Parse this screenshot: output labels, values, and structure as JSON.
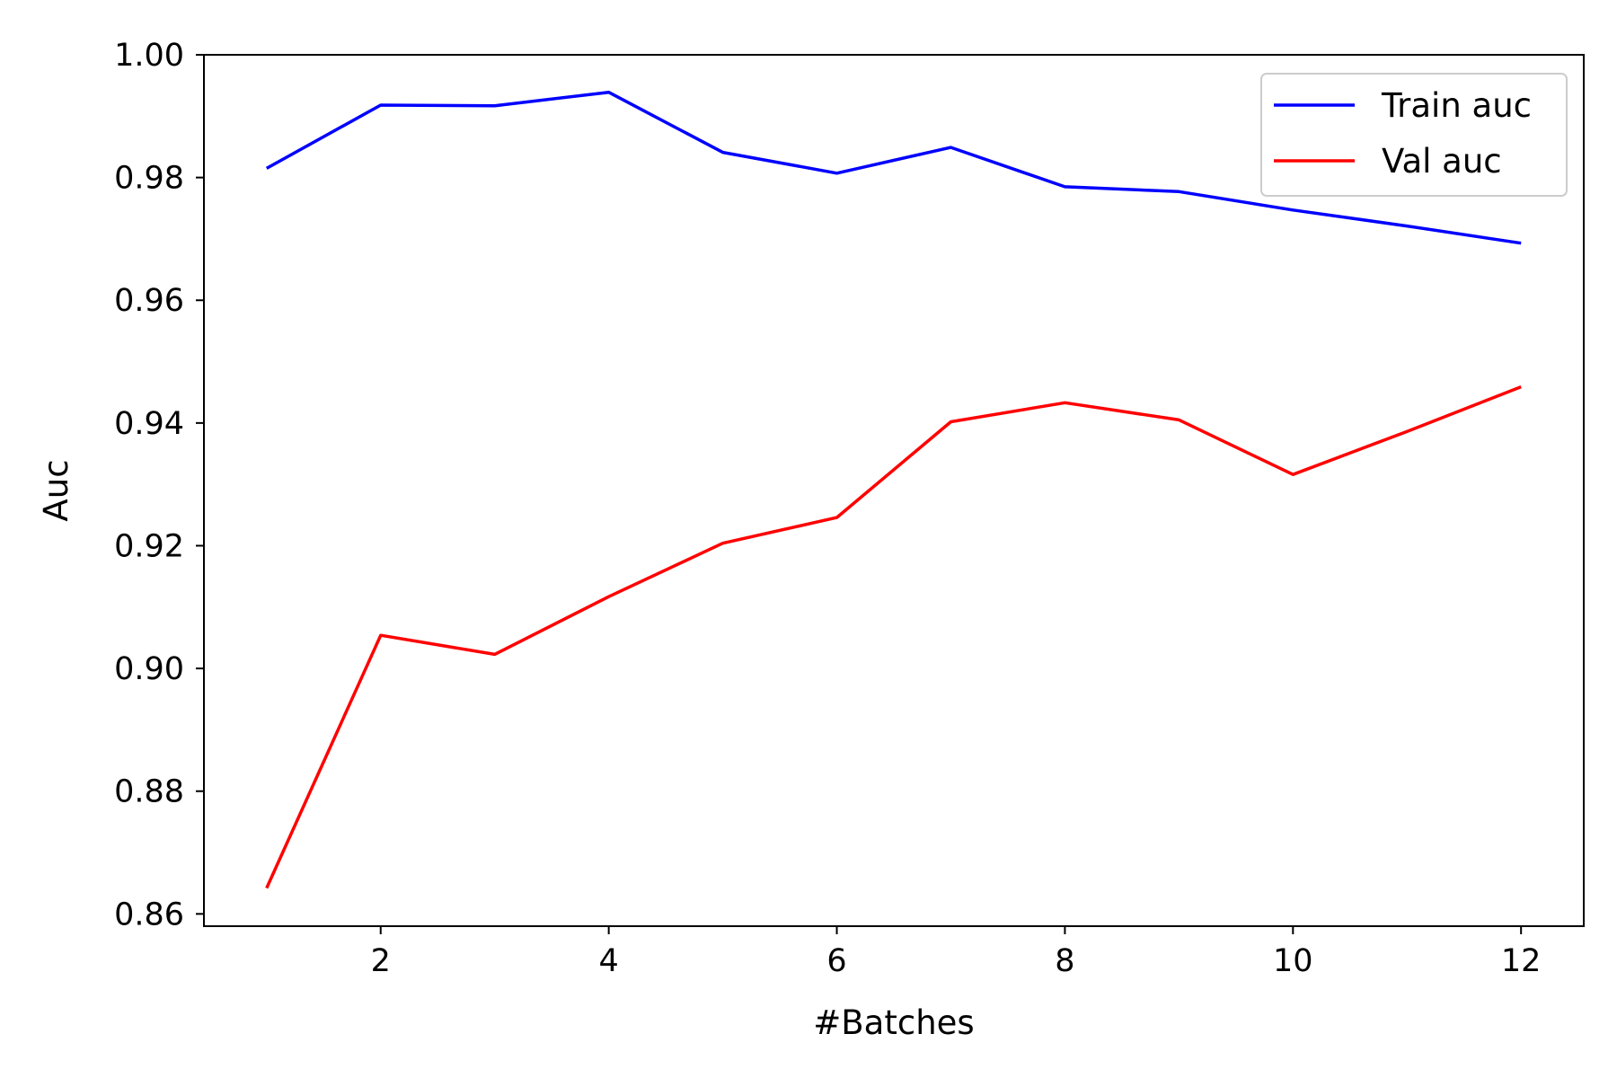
{
  "chart_data": {
    "type": "line",
    "title": "",
    "xlabel": "#Batches",
    "ylabel": "Auc",
    "x": [
      1,
      2,
      3,
      4,
      5,
      6,
      7,
      8,
      9,
      10,
      11,
      12
    ],
    "xlim": [
      0.45,
      12.55
    ],
    "ylim": [
      0.858,
      1.0
    ],
    "xticks": [
      2,
      4,
      6,
      8,
      10,
      12
    ],
    "xtick_labels": [
      "2",
      "4",
      "6",
      "8",
      "10",
      "12"
    ],
    "yticks": [
      0.86,
      0.88,
      0.9,
      0.92,
      0.94,
      0.96,
      0.98,
      1.0
    ],
    "ytick_labels": [
      "0.86",
      "0.88",
      "0.90",
      "0.92",
      "0.94",
      "0.96",
      "0.98",
      "1.00"
    ],
    "grid": false,
    "legend_position": "top-right",
    "series": [
      {
        "name": "Train auc",
        "color": "#0000ff",
        "values": [
          0.9815,
          0.9918,
          0.9917,
          0.9939,
          0.9841,
          0.9807,
          0.9849,
          0.9785,
          0.9777,
          0.9747,
          0.9721,
          0.9693
        ]
      },
      {
        "name": "Val auc",
        "color": "#ff0000",
        "values": [
          0.8642,
          0.9054,
          0.9023,
          0.9117,
          0.9204,
          0.9246,
          0.9402,
          0.9433,
          0.9405,
          0.9316,
          0.9386,
          0.9459
        ]
      }
    ]
  }
}
